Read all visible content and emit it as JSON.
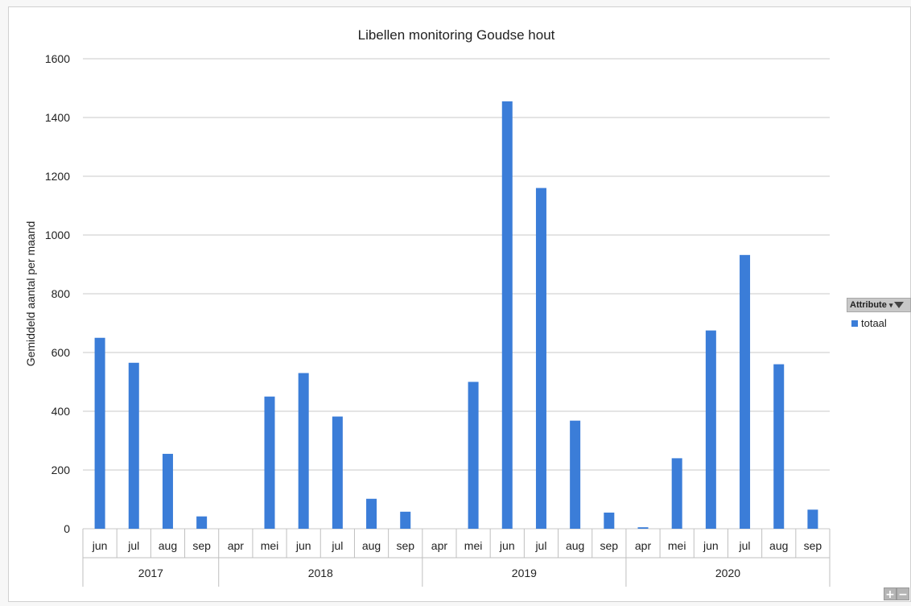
{
  "chart_data": {
    "type": "bar",
    "title": "Libellen monitoring Goudse hout",
    "ylabel": "Gemiddeld aantal per maand",
    "ylim": [
      0,
      1600
    ],
    "yticks": [
      0,
      200,
      400,
      600,
      800,
      1000,
      1200,
      1400,
      1600
    ],
    "groups": [
      {
        "label": "2017",
        "categories": [
          "jun",
          "jul",
          "aug",
          "sep"
        ],
        "values": [
          650,
          565,
          255,
          42
        ]
      },
      {
        "label": "2018",
        "categories": [
          "apr",
          "mei",
          "jun",
          "jul",
          "aug",
          "sep"
        ],
        "values": [
          0,
          450,
          530,
          382,
          102,
          58
        ]
      },
      {
        "label": "2019",
        "categories": [
          "apr",
          "mei",
          "jun",
          "jul",
          "aug",
          "sep"
        ],
        "values": [
          0,
          500,
          1455,
          1160,
          368,
          55
        ]
      },
      {
        "label": "2020",
        "categories": [
          "apr",
          "mei",
          "jun",
          "jul",
          "aug",
          "sep"
        ],
        "values": [
          5,
          240,
          675,
          932,
          560,
          65
        ]
      }
    ],
    "series": [
      {
        "name": "totaal",
        "color": "#3b7dd8"
      }
    ],
    "grid": true,
    "legend_position": "right"
  },
  "legend": {
    "header_label": "Attribute",
    "items": [
      {
        "label": "totaal",
        "color": "#3b7dd8"
      }
    ]
  },
  "zoom": {
    "plus": "+",
    "minus": "−"
  }
}
